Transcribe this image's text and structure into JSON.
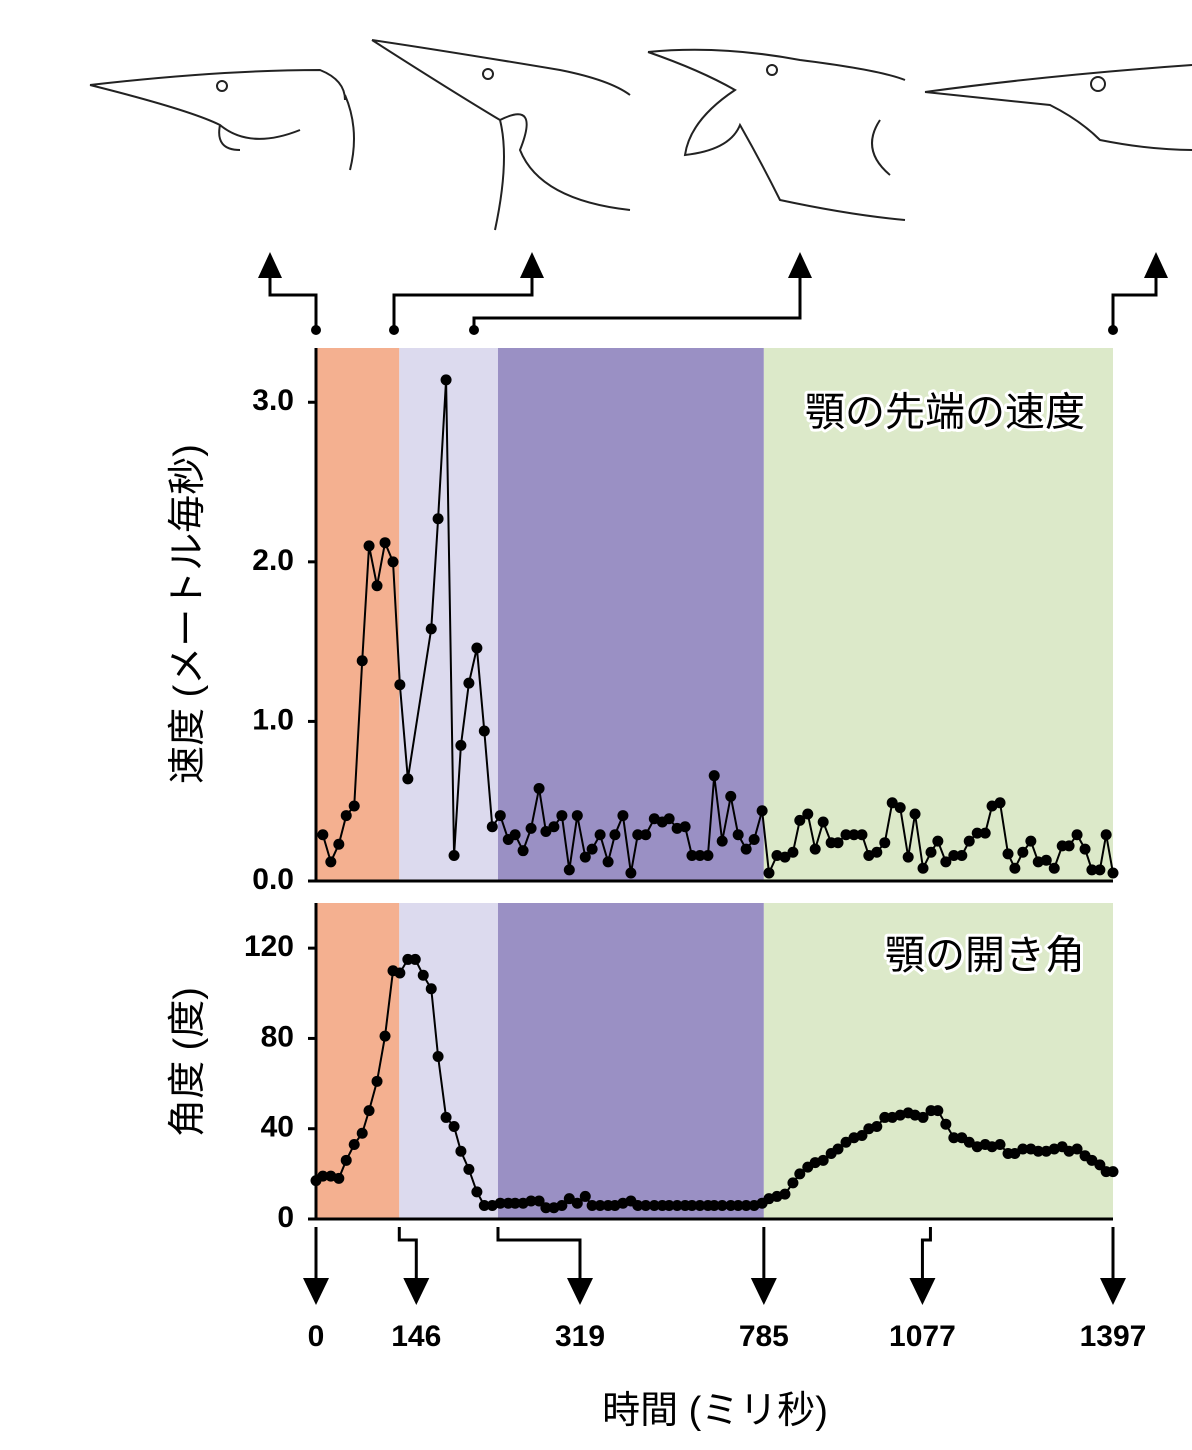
{
  "chart_data": [
    {
      "type": "line",
      "title": "顎の先端の速度",
      "y_label": "速度 (メートル毎秒)",
      "xlim": [
        0,
        1397
      ],
      "ylim": [
        0,
        3.34
      ],
      "yticks": [
        {
          "value": 0,
          "label": "0.0"
        },
        {
          "value": 1,
          "label": "1.0"
        },
        {
          "value": 2,
          "label": "2.0"
        },
        {
          "value": 3,
          "label": "3.0"
        }
      ],
      "phases": [
        {
          "from": 0,
          "to": 146,
          "color": "#f4b090"
        },
        {
          "from": 146,
          "to": 319,
          "color": "#dcdaee"
        },
        {
          "from": 319,
          "to": 785,
          "color": "#9a90c4"
        },
        {
          "from": 785,
          "to": 1397,
          "color": "#dce9c9"
        }
      ],
      "series": [
        {
          "color": "#000000",
          "x": [
            12,
            26,
            40,
            53,
            67,
            81,
            93,
            107,
            121,
            135,
            147,
            161,
            202,
            214,
            228,
            242,
            254,
            268,
            282,
            295,
            309,
            323,
            337,
            349,
            363,
            377,
            391,
            403,
            417,
            431,
            444,
            458,
            472,
            484,
            498,
            512,
            524,
            538,
            552,
            564,
            578,
            593,
            607,
            619,
            633,
            647,
            659,
            673,
            687,
            698,
            712,
            727,
            740,
            754,
            768,
            782,
            794,
            808,
            822,
            836,
            848,
            862,
            875,
            889,
            903,
            915,
            929,
            943,
            957,
            969,
            983,
            997,
            1010,
            1024,
            1038,
            1050,
            1064,
            1078,
            1090,
            1104,
            1118,
            1132,
            1145,
            1159,
            1173,
            1185,
            1199,
            1213,
            1225,
            1239,
            1253,
            1266,
            1280,
            1294,
            1308,
            1320,
            1334,
            1348,
            1360,
            1374,
            1385,
            1397
          ],
          "values": [
            0.29,
            0.12,
            0.23,
            0.41,
            0.47,
            1.38,
            2.1,
            1.85,
            2.12,
            2.0,
            1.23,
            0.64,
            1.58,
            2.27,
            3.14,
            0.16,
            0.85,
            1.24,
            1.46,
            0.94,
            0.34,
            0.41,
            0.26,
            0.29,
            0.19,
            0.33,
            0.58,
            0.31,
            0.34,
            0.41,
            0.07,
            0.41,
            0.15,
            0.2,
            0.29,
            0.12,
            0.29,
            0.41,
            0.05,
            0.29,
            0.29,
            0.39,
            0.37,
            0.39,
            0.33,
            0.34,
            0.16,
            0.16,
            0.16,
            0.66,
            0.25,
            0.53,
            0.29,
            0.2,
            0.26,
            0.44,
            0.05,
            0.16,
            0.15,
            0.18,
            0.38,
            0.42,
            0.2,
            0.37,
            0.24,
            0.24,
            0.29,
            0.29,
            0.29,
            0.16,
            0.18,
            0.24,
            0.49,
            0.46,
            0.15,
            0.42,
            0.08,
            0.18,
            0.25,
            0.12,
            0.16,
            0.16,
            0.25,
            0.3,
            0.3,
            0.47,
            0.49,
            0.17,
            0.08,
            0.18,
            0.25,
            0.12,
            0.13,
            0.08,
            0.22,
            0.22,
            0.29,
            0.2,
            0.07,
            0.07,
            0.29,
            0.05
          ]
        }
      ]
    },
    {
      "type": "line",
      "title": "顎の開き角",
      "y_label": "角度 (度)",
      "x_label": "時間 (ミリ秒)",
      "xlim": [
        0,
        1397
      ],
      "ylim": [
        0,
        140
      ],
      "yticks": [
        0,
        40,
        80,
        120
      ],
      "xticks": [
        0,
        146,
        319,
        785,
        1077,
        1397
      ],
      "phases": [
        {
          "from": 0,
          "to": 146,
          "color": "#f4b090"
        },
        {
          "from": 146,
          "to": 319,
          "color": "#dcdaee"
        },
        {
          "from": 319,
          "to": 785,
          "color": "#9a90c4"
        },
        {
          "from": 785,
          "to": 1397,
          "color": "#dce9c9"
        }
      ],
      "series": [
        {
          "color": "#000000",
          "x": [
            0,
            12,
            26,
            40,
            53,
            67,
            81,
            93,
            107,
            121,
            135,
            147,
            161,
            174,
            188,
            202,
            214,
            228,
            242,
            254,
            268,
            282,
            295,
            309,
            323,
            337,
            349,
            363,
            377,
            391,
            403,
            417,
            431,
            444,
            458,
            472,
            484,
            498,
            512,
            524,
            538,
            552,
            564,
            578,
            593,
            607,
            619,
            633,
            647,
            659,
            673,
            687,
            698,
            712,
            727,
            740,
            754,
            768,
            782,
            794,
            808,
            822,
            836,
            848,
            862,
            875,
            889,
            903,
            915,
            929,
            943,
            957,
            969,
            983,
            997,
            1010,
            1024,
            1038,
            1050,
            1064,
            1078,
            1090,
            1104,
            1118,
            1132,
            1145,
            1159,
            1173,
            1185,
            1199,
            1213,
            1225,
            1239,
            1253,
            1266,
            1280,
            1294,
            1308,
            1320,
            1334,
            1348,
            1360,
            1374,
            1385,
            1397
          ],
          "values": [
            17,
            19,
            19,
            18,
            26,
            33,
            38,
            48,
            61,
            81,
            110,
            109,
            115,
            115,
            108,
            102,
            72,
            45,
            41,
            30,
            22,
            12,
            6,
            6,
            7,
            7,
            7,
            7,
            8,
            8,
            5,
            5,
            6,
            9,
            7,
            10,
            6,
            6,
            6,
            6,
            7,
            8,
            6,
            6,
            6,
            6,
            6,
            6,
            6,
            6,
            6,
            6,
            6,
            6,
            6,
            6,
            6,
            6,
            7,
            9,
            10,
            11,
            16,
            20,
            23,
            25,
            26,
            29,
            31,
            34,
            36,
            37,
            40,
            41,
            45,
            45,
            46,
            47,
            46,
            45,
            48,
            48,
            42,
            36,
            36,
            34,
            32,
            33,
            32,
            33,
            29,
            29,
            31,
            31,
            30,
            30,
            31,
            32,
            30,
            31,
            28,
            26,
            24,
            21,
            21
          ]
        }
      ]
    }
  ]
}
